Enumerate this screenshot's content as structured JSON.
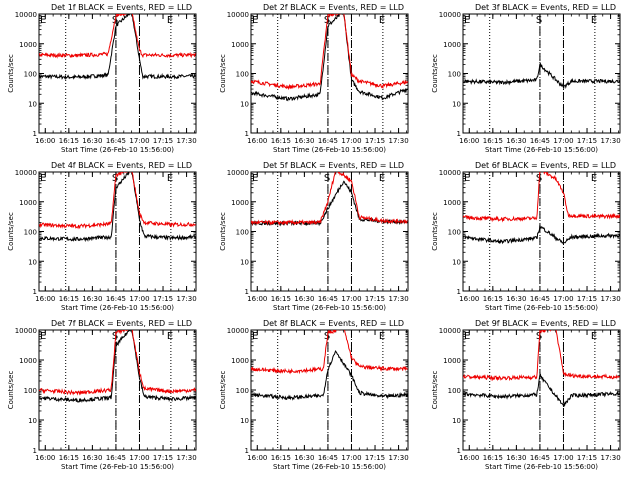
{
  "window": {
    "title": ""
  },
  "shared": {
    "ylabel": "Counts/sec",
    "xlabel": "Start Time (26-Feb-10 15:56:00)",
    "xticks": [
      "16:00",
      "16:15",
      "16:30",
      "16:45",
      "17:00",
      "17:15",
      "17:30"
    ],
    "yticks": [
      "1",
      "10",
      "100",
      "1000",
      "10000"
    ],
    "marker_labels": {
      "start": "S",
      "end": "E",
      "edge": "E"
    },
    "colors": {
      "events": "#000000",
      "lld": "#ee0000",
      "axes": "#000000"
    }
  },
  "chart_data": [
    {
      "type": "line",
      "title": "Det 1f BLACK = Events, RED = LLD",
      "x_unit": "minutes since 15:56",
      "ylim": [
        1,
        10000
      ],
      "yscale": "log",
      "xlabel": "Start Time (26-Feb-10 15:56:00)",
      "ylabel": "Counts/sec",
      "dotted_lines_x": [
        "16:13",
        "16:45",
        "17:00",
        "17:20"
      ],
      "dashed_lines_x": [
        "16:45",
        "17:00"
      ],
      "series": [
        {
          "name": "Events",
          "color": "#000000",
          "points": [
            [
              "15:56",
              80
            ],
            [
              "16:20",
              75
            ],
            [
              "16:40",
              88
            ],
            [
              "16:45",
              4000
            ],
            [
              "16:55",
              12000
            ],
            [
              "17:00",
              300
            ],
            [
              "17:02",
              80
            ],
            [
              "17:20",
              78
            ],
            [
              "17:36",
              82
            ]
          ]
        },
        {
          "name": "LLD",
          "color": "#ee0000",
          "points": [
            [
              "15:56",
              420
            ],
            [
              "16:20",
              400
            ],
            [
              "16:40",
              450
            ],
            [
              "16:45",
              9000
            ],
            [
              "16:55",
              12000
            ],
            [
              "17:00",
              600
            ],
            [
              "17:02",
              420
            ],
            [
              "17:20",
              410
            ],
            [
              "17:36",
              420
            ]
          ]
        }
      ]
    },
    {
      "type": "line",
      "title": "Det 2f BLACK = Events, RED = LLD",
      "x_unit": "minutes since 15:56",
      "ylim": [
        1,
        10000
      ],
      "yscale": "log",
      "xlabel": "Start Time (26-Feb-10 15:56:00)",
      "ylabel": "Counts/sec",
      "dotted_lines_x": [
        "16:13",
        "16:45",
        "17:00",
        "17:20"
      ],
      "dashed_lines_x": [
        "16:45",
        "17:00"
      ],
      "series": [
        {
          "name": "Events",
          "color": "#000000",
          "points": [
            [
              "15:56",
              22
            ],
            [
              "16:20",
              14
            ],
            [
              "16:40",
              20
            ],
            [
              "16:45",
              4000
            ],
            [
              "16:55",
              12000
            ],
            [
              "17:00",
              60
            ],
            [
              "17:05",
              25
            ],
            [
              "17:20",
              15
            ],
            [
              "17:36",
              30
            ]
          ]
        },
        {
          "name": "LLD",
          "color": "#ee0000",
          "points": [
            [
              "15:56",
              55
            ],
            [
              "16:20",
              35
            ],
            [
              "16:40",
              45
            ],
            [
              "16:45",
              9000
            ],
            [
              "16:55",
              12000
            ],
            [
              "17:00",
              90
            ],
            [
              "17:05",
              55
            ],
            [
              "17:20",
              38
            ],
            [
              "17:36",
              52
            ]
          ]
        }
      ]
    },
    {
      "type": "line",
      "title": "Det 3f BLACK = Events, RED = LLD",
      "x_unit": "minutes since 15:56",
      "ylim": [
        1,
        10000
      ],
      "yscale": "log",
      "xlabel": "Start Time (26-Feb-10 15:56:00)",
      "ylabel": "Counts/sec",
      "dotted_lines_x": [
        "16:13",
        "16:45",
        "17:00",
        "17:20"
      ],
      "dashed_lines_x": [
        "16:45",
        "17:00"
      ],
      "series": [
        {
          "name": "Events",
          "color": "#000000",
          "points": [
            [
              "15:56",
              55
            ],
            [
              "16:20",
              50
            ],
            [
              "16:43",
              60
            ],
            [
              "16:45",
              200
            ],
            [
              "17:00",
              35
            ],
            [
              "17:05",
              55
            ],
            [
              "17:36",
              55
            ]
          ]
        },
        {
          "name": "LLD",
          "color": "#ee0000",
          "points": []
        }
      ]
    },
    {
      "type": "line",
      "title": "Det 4f BLACK = Events, RED = LLD",
      "x_unit": "minutes since 15:56",
      "ylim": [
        1,
        10000
      ],
      "yscale": "log",
      "xlabel": "Start Time (26-Feb-10 15:56:00)",
      "ylabel": "Counts/sec",
      "dotted_lines_x": [
        "16:13",
        "16:45",
        "17:00",
        "17:20"
      ],
      "dashed_lines_x": [
        "16:45",
        "17:00"
      ],
      "series": [
        {
          "name": "Events",
          "color": "#000000",
          "points": [
            [
              "15:56",
              60
            ],
            [
              "16:20",
              55
            ],
            [
              "16:42",
              65
            ],
            [
              "16:45",
              3000
            ],
            [
              "16:55",
              12000
            ],
            [
              "17:00",
              250
            ],
            [
              "17:03",
              70
            ],
            [
              "17:20",
              60
            ],
            [
              "17:36",
              65
            ]
          ]
        },
        {
          "name": "LLD",
          "color": "#ee0000",
          "points": [
            [
              "15:56",
              170
            ],
            [
              "16:20",
              150
            ],
            [
              "16:42",
              180
            ],
            [
              "16:45",
              8000
            ],
            [
              "16:55",
              12000
            ],
            [
              "17:00",
              400
            ],
            [
              "17:03",
              200
            ],
            [
              "17:20",
              170
            ],
            [
              "17:36",
              175
            ]
          ]
        }
      ]
    },
    {
      "type": "line",
      "title": "Det 5f BLACK = Events, RED = LLD",
      "x_unit": "minutes since 15:56",
      "ylim": [
        1,
        10000
      ],
      "yscale": "log",
      "xlabel": "Start Time (26-Feb-10 15:56:00)",
      "ylabel": "Counts/sec",
      "dotted_lines_x": [
        "16:13",
        "16:45",
        "17:00",
        "17:20"
      ],
      "dashed_lines_x": [
        "16:45",
        "17:00"
      ],
      "series": [
        {
          "name": "Events",
          "color": "#000000",
          "points": [
            [
              "15:56",
              190
            ],
            [
              "16:40",
              190
            ],
            [
              "16:45",
              600
            ],
            [
              "16:55",
              5000
            ],
            [
              "17:00",
              2000
            ],
            [
              "17:05",
              260
            ],
            [
              "17:20",
              220
            ],
            [
              "17:36",
              210
            ]
          ]
        },
        {
          "name": "LLD",
          "color": "#ee0000",
          "points": [
            [
              "15:56",
              200
            ],
            [
              "16:40",
              200
            ],
            [
              "16:45",
              1000
            ],
            [
              "16:50",
              12000
            ],
            [
              "17:00",
              5000
            ],
            [
              "17:05",
              300
            ],
            [
              "17:20",
              230
            ],
            [
              "17:36",
              220
            ]
          ]
        }
      ]
    },
    {
      "type": "line",
      "title": "Det 6f BLACK = Events, RED = LLD",
      "x_unit": "minutes since 15:56",
      "ylim": [
        1,
        10000
      ],
      "yscale": "log",
      "xlabel": "Start Time (26-Feb-10 15:56:00)",
      "ylabel": "Counts/sec",
      "dotted_lines_x": [
        "16:13",
        "16:45",
        "17:00",
        "17:20"
      ],
      "dashed_lines_x": [
        "16:45",
        "17:00"
      ],
      "series": [
        {
          "name": "Events",
          "color": "#000000",
          "points": [
            [
              "15:56",
              65
            ],
            [
              "16:20",
              45
            ],
            [
              "16:43",
              60
            ],
            [
              "16:45",
              150
            ],
            [
              "17:00",
              40
            ],
            [
              "17:05",
              65
            ],
            [
              "17:36",
              75
            ]
          ]
        },
        {
          "name": "LLD",
          "color": "#ee0000",
          "points": [
            [
              "15:56",
              300
            ],
            [
              "16:20",
              260
            ],
            [
              "16:43",
              280
            ],
            [
              "16:45",
              12000
            ],
            [
              "16:55",
              6000
            ],
            [
              "17:00",
              2000
            ],
            [
              "17:03",
              350
            ],
            [
              "17:20",
              320
            ],
            [
              "17:36",
              330
            ]
          ]
        }
      ]
    },
    {
      "type": "line",
      "title": "Det 7f BLACK = Events, RED = LLD",
      "x_unit": "minutes since 15:56",
      "ylim": [
        1,
        10000
      ],
      "yscale": "log",
      "xlabel": "Start Time (26-Feb-10 15:56:00)",
      "ylabel": "Counts/sec",
      "dotted_lines_x": [
        "16:13",
        "16:45",
        "17:00",
        "17:20"
      ],
      "dashed_lines_x": [
        "16:45",
        "17:00"
      ],
      "series": [
        {
          "name": "Events",
          "color": "#000000",
          "points": [
            [
              "15:56",
              55
            ],
            [
              "16:20",
              45
            ],
            [
              "16:42",
              55
            ],
            [
              "16:45",
              3000
            ],
            [
              "16:55",
              12000
            ],
            [
              "17:00",
              250
            ],
            [
              "17:03",
              60
            ],
            [
              "17:20",
              50
            ],
            [
              "17:36",
              55
            ]
          ]
        },
        {
          "name": "LLD",
          "color": "#ee0000",
          "points": [
            [
              "15:56",
              100
            ],
            [
              "16:20",
              80
            ],
            [
              "16:42",
              100
            ],
            [
              "16:45",
              8000
            ],
            [
              "16:55",
              12000
            ],
            [
              "17:00",
              400
            ],
            [
              "17:03",
              110
            ],
            [
              "17:20",
              90
            ],
            [
              "17:36",
              100
            ]
          ]
        }
      ]
    },
    {
      "type": "line",
      "title": "Det 8f BLACK = Events, RED = LLD",
      "x_unit": "minutes since 15:56",
      "ylim": [
        1,
        10000
      ],
      "yscale": "log",
      "xlabel": "Start Time (26-Feb-10 15:56:00)",
      "ylabel": "Counts/sec",
      "dotted_lines_x": [
        "16:13",
        "16:45",
        "17:00",
        "17:20"
      ],
      "dashed_lines_x": [
        "16:45",
        "17:00"
      ],
      "series": [
        {
          "name": "Events",
          "color": "#000000",
          "points": [
            [
              "15:56",
              70
            ],
            [
              "16:20",
              55
            ],
            [
              "16:42",
              65
            ],
            [
              "16:45",
              500
            ],
            [
              "16:50",
              2000
            ],
            [
              "17:00",
              300
            ],
            [
              "17:05",
              80
            ],
            [
              "17:20",
              60
            ],
            [
              "17:36",
              70
            ]
          ]
        },
        {
          "name": "LLD",
          "color": "#ee0000",
          "points": [
            [
              "15:56",
              500
            ],
            [
              "16:20",
              420
            ],
            [
              "16:42",
              500
            ],
            [
              "16:45",
              8000
            ],
            [
              "16:55",
              12000
            ],
            [
              "17:00",
              1200
            ],
            [
              "17:05",
              600
            ],
            [
              "17:20",
              520
            ],
            [
              "17:36",
              500
            ]
          ]
        }
      ]
    },
    {
      "type": "line",
      "title": "Det 9f BLACK = Events, RED = LLD",
      "x_unit": "minutes since 15:56",
      "ylim": [
        1,
        10000
      ],
      "yscale": "log",
      "xlabel": "Start Time (26-Feb-10 15:56:00)",
      "ylabel": "Counts/sec",
      "dotted_lines_x": [
        "16:13",
        "16:45",
        "17:00",
        "17:20"
      ],
      "dashed_lines_x": [
        "16:45",
        "17:00"
      ],
      "series": [
        {
          "name": "Events",
          "color": "#000000",
          "points": [
            [
              "15:56",
              75
            ],
            [
              "16:20",
              60
            ],
            [
              "16:43",
              70
            ],
            [
              "16:45",
              300
            ],
            [
              "17:00",
              30
            ],
            [
              "17:05",
              65
            ],
            [
              "17:20",
              70
            ],
            [
              "17:36",
              75
            ]
          ]
        },
        {
          "name": "LLD",
          "color": "#ee0000",
          "points": [
            [
              "15:56",
              280
            ],
            [
              "16:20",
              250
            ],
            [
              "16:43",
              270
            ],
            [
              "16:45",
              9000
            ],
            [
              "16:55",
              12000
            ],
            [
              "17:00",
              350
            ],
            [
              "17:05",
              300
            ],
            [
              "17:20",
              280
            ],
            [
              "17:36",
              270
            ]
          ]
        }
      ]
    }
  ]
}
